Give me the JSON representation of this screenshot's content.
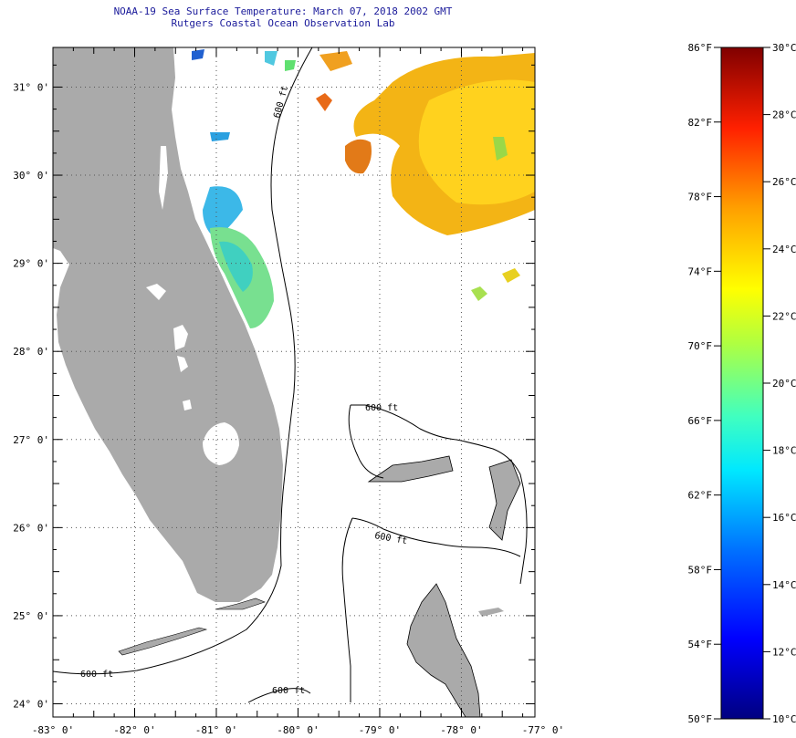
{
  "title": {
    "line1": "NOAA-19 Sea Surface Temperature:  March 07, 2018 2002 GMT",
    "line2": "Rutgers Coastal Ocean Observation Lab"
  },
  "map": {
    "lat_labels": [
      "31° 0'",
      "30° 0'",
      "29° 0'",
      "28° 0'",
      "27° 0'",
      "26° 0'",
      "25° 0'",
      "24° 0'"
    ],
    "lat_values": [
      31,
      30,
      29,
      28,
      27,
      26,
      25,
      24
    ],
    "lon_labels": [
      "-83° 0'",
      "-82° 0'",
      "-81° 0'",
      "-80° 0'",
      "-79° 0'",
      "-78° 0'",
      "-77° 0'"
    ],
    "lon_values": [
      -83,
      -82,
      -81,
      -80,
      -79,
      -78,
      -77
    ],
    "lon_range": [
      -83,
      -77.1
    ],
    "lat_range": [
      23.85,
      31.45
    ],
    "contour_labels": [
      "600 ft",
      "600 ft",
      "600 ft",
      "600 ft",
      "600 ft"
    ],
    "colors": {
      "land": "#aaaaaa",
      "background": "#ffffff",
      "grid": "#555555"
    }
  },
  "colorbar": {
    "f_labels": [
      "86°F",
      "82°F",
      "78°F",
      "74°F",
      "70°F",
      "66°F",
      "62°F",
      "58°F",
      "54°F",
      "50°F"
    ],
    "f_values": [
      86,
      82,
      78,
      74,
      70,
      66,
      62,
      58,
      54,
      50
    ],
    "c_labels": [
      "30°C",
      "28°C",
      "26°C",
      "24°C",
      "22°C",
      "20°C",
      "18°C",
      "16°C",
      "14°C",
      "12°C",
      "10°C"
    ],
    "c_values": [
      30,
      28,
      26,
      24,
      22,
      20,
      18,
      16,
      14,
      12,
      10
    ],
    "range_f": [
      50,
      86
    ],
    "colormap": [
      "#00008b",
      "#0000ff",
      "#0080ff",
      "#00ffff",
      "#80ff80",
      "#ffff00",
      "#ff8000",
      "#ff0000",
      "#800000"
    ]
  }
}
